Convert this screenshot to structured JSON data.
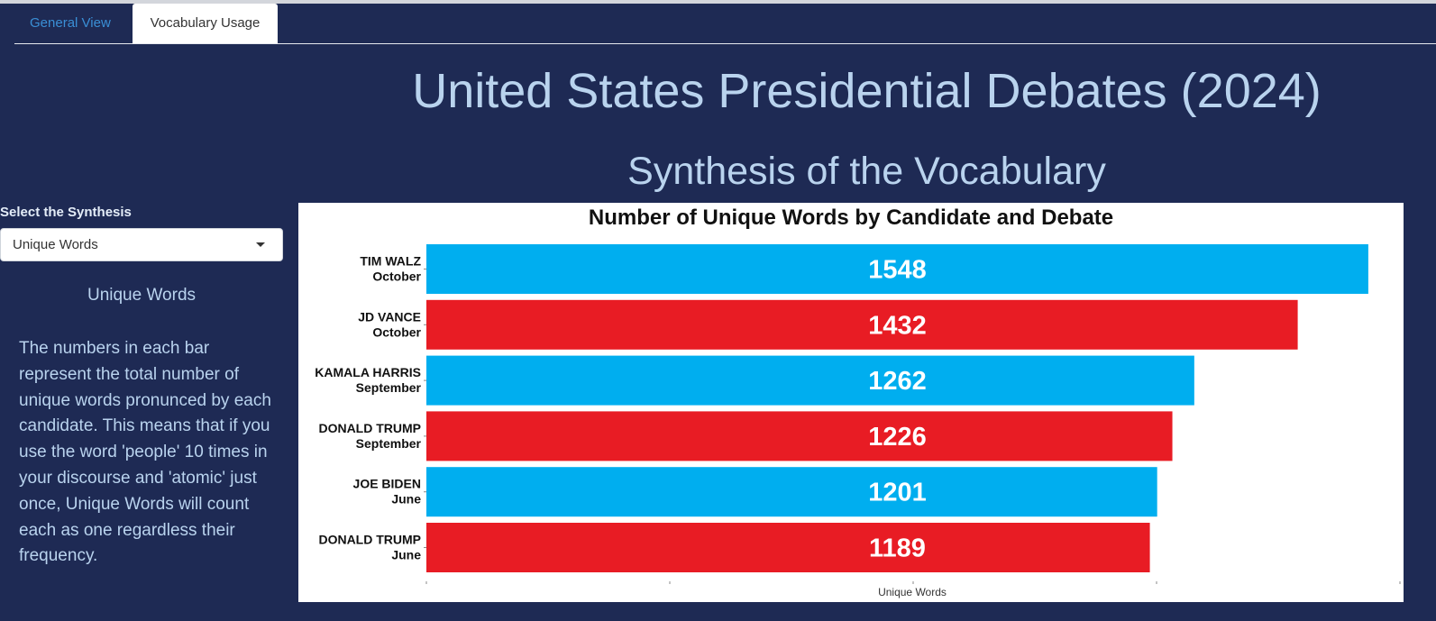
{
  "tabs": [
    {
      "label": "General View",
      "active": false
    },
    {
      "label": "Vocabulary Usage",
      "active": true
    }
  ],
  "header": {
    "title": "United States Presidential Debates (2024)",
    "subtitle": "Synthesis of the Vocabulary"
  },
  "sidebar": {
    "select_label": "Select the Synthesis",
    "selected_value": "Unique Words",
    "heading": "Unique Words",
    "description": "The numbers in each bar represent the total number of unique words pronunced by each candidate. This means that if you use the word 'people' 10 times in your discourse and 'atomic' just once, Unique Words will count each as one regardless their frequency."
  },
  "colors": {
    "background": "#1e2a54",
    "accent_text": "#b9d3ee",
    "democrat": "#00aeef",
    "republican": "#e81c24"
  },
  "chart_data": {
    "type": "bar",
    "orientation": "horizontal",
    "title": "Number of Unique Words by Candidate and Debate",
    "xlabel": "Unique Words",
    "ylabel": "",
    "xlim": [
      0,
      1600
    ],
    "grid": false,
    "categories": [
      {
        "name": "TIM WALZ",
        "debate": "October",
        "value": 1548,
        "party": "democrat"
      },
      {
        "name": "JD VANCE",
        "debate": "October",
        "value": 1432,
        "party": "republican"
      },
      {
        "name": "KAMALA HARRIS",
        "debate": "September",
        "value": 1262,
        "party": "democrat"
      },
      {
        "name": "DONALD TRUMP",
        "debate": "September",
        "value": 1226,
        "party": "republican"
      },
      {
        "name": "JOE BIDEN",
        "debate": "June",
        "value": 1201,
        "party": "democrat"
      },
      {
        "name": "DONALD TRUMP",
        "debate": "June",
        "value": 1189,
        "party": "republican"
      }
    ]
  }
}
